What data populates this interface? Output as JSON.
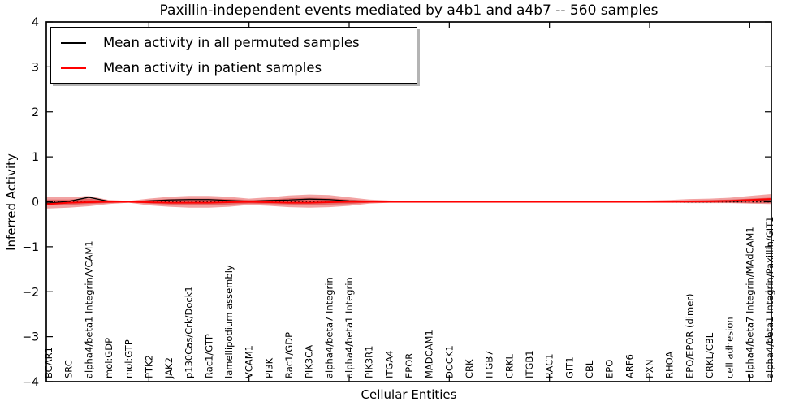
{
  "chart_data": {
    "type": "line",
    "title": "Paxillin-independent events mediated by a4b1 and a4b7 -- 560 samples",
    "xlabel": "Cellular Entities",
    "ylabel": "Inferred Activity",
    "ylim": [
      -4,
      4
    ],
    "grid": false,
    "legend_position": "upper left",
    "y_tick_values": [
      4,
      3,
      2,
      1,
      0,
      -1,
      -2,
      -3,
      -4
    ],
    "y_tick_labels": [
      "4",
      "3",
      "2",
      "1",
      "0",
      "−1",
      "−2",
      "−3",
      "−4"
    ],
    "x_major_tick_indices": [
      5,
      10,
      15,
      20,
      25,
      30,
      35
    ],
    "categories": [
      "BCAR1",
      "SRC",
      "alpha4/beta1 Integrin/VCAM1",
      "mol:GDP",
      "mol:GTP",
      "PTK2",
      "JAK2",
      "p130Cas/Crk/Dock1",
      "Rac1/GTP",
      "lamellipodium assembly",
      "VCAM1",
      "PI3K",
      "Rac1/GDP",
      "PIK3CA",
      "alpha4/beta7 Integrin",
      "alpha4/beta1 Integrin",
      "PIK3R1",
      "ITGA4",
      "EPOR",
      "MADCAM1",
      "DOCK1",
      "CRK",
      "ITGB7",
      "CRKL",
      "ITGB1",
      "RAC1",
      "GIT1",
      "CBL",
      "EPO",
      "ARF6",
      "PXN",
      "RHOA",
      "EPO/EPOR (dimer)",
      "CRKL/CBL",
      "cell adhesion",
      "alpha4/beta7 Integrin/MAdCAM1",
      "alpha4/beta1 Integrin/Paxillin/GIT1"
    ],
    "series": [
      {
        "name": "Mean activity in all permuted samples",
        "color": "#000000",
        "values": [
          -0.03,
          0.01,
          0.1,
          0.01,
          0.0,
          0.02,
          0.04,
          0.05,
          0.05,
          0.03,
          0.01,
          0.03,
          0.04,
          0.06,
          0.05,
          0.02,
          0.01,
          0.0,
          0.0,
          0.0,
          0.0,
          0.0,
          0.0,
          0.0,
          0.0,
          0.0,
          0.0,
          0.0,
          0.0,
          0.0,
          0.0,
          0.01,
          0.01,
          0.01,
          0.01,
          0.02,
          0.02
        ]
      },
      {
        "name": "Mean activity in patient samples",
        "color": "#ff0000",
        "values": [
          -0.05,
          -0.02,
          -0.01,
          0.0,
          0.0,
          -0.01,
          -0.02,
          -0.02,
          -0.02,
          -0.01,
          0.0,
          -0.01,
          -0.02,
          -0.02,
          -0.01,
          0.0,
          0.0,
          0.0,
          0.0,
          0.0,
          0.0,
          0.0,
          0.0,
          0.0,
          0.0,
          0.0,
          0.0,
          0.0,
          0.0,
          0.0,
          0.0,
          0.0,
          0.01,
          0.01,
          0.02,
          0.04,
          0.06
        ]
      }
    ],
    "band": {
      "outer_color": "#f2a3a3",
      "inner_color": "#e05e5e",
      "upper": [
        0.1,
        0.1,
        0.13,
        0.04,
        0.02,
        0.07,
        0.11,
        0.13,
        0.13,
        0.11,
        0.07,
        0.1,
        0.14,
        0.16,
        0.15,
        0.1,
        0.05,
        0.03,
        0.02,
        0.02,
        0.02,
        0.02,
        0.02,
        0.02,
        0.02,
        0.02,
        0.02,
        0.02,
        0.02,
        0.02,
        0.03,
        0.04,
        0.06,
        0.07,
        0.09,
        0.13,
        0.17
      ],
      "lower": [
        -0.15,
        -0.13,
        -0.1,
        -0.05,
        -0.02,
        -0.08,
        -0.11,
        -0.13,
        -0.13,
        -0.11,
        -0.07,
        -0.09,
        -0.12,
        -0.13,
        -0.12,
        -0.09,
        -0.04,
        -0.02,
        -0.02,
        -0.02,
        -0.02,
        -0.02,
        -0.02,
        -0.02,
        -0.02,
        -0.02,
        -0.02,
        -0.02,
        -0.02,
        -0.02,
        -0.02,
        -0.02,
        -0.03,
        -0.03,
        -0.03,
        -0.04,
        -0.05
      ],
      "inner_upper": [
        0.05,
        0.05,
        0.07,
        0.02,
        0.01,
        0.04,
        0.06,
        0.07,
        0.07,
        0.06,
        0.04,
        0.05,
        0.08,
        0.09,
        0.08,
        0.05,
        0.03,
        0.02,
        0.01,
        0.01,
        0.01,
        0.01,
        0.01,
        0.01,
        0.01,
        0.01,
        0.01,
        0.01,
        0.01,
        0.01,
        0.02,
        0.02,
        0.03,
        0.04,
        0.05,
        0.07,
        0.09
      ],
      "inner_lower": [
        -0.08,
        -0.07,
        -0.05,
        -0.03,
        -0.01,
        -0.04,
        -0.06,
        -0.07,
        -0.07,
        -0.06,
        -0.04,
        -0.05,
        -0.06,
        -0.07,
        -0.06,
        -0.05,
        -0.02,
        -0.01,
        -0.01,
        -0.01,
        -0.01,
        -0.01,
        -0.01,
        -0.01,
        -0.01,
        -0.01,
        -0.01,
        -0.01,
        -0.01,
        -0.01,
        -0.01,
        -0.01,
        -0.02,
        -0.02,
        -0.02,
        -0.03,
        -0.03
      ]
    },
    "zero_line": {
      "value": 0,
      "style": "dotted",
      "color": "#000000"
    }
  },
  "legend": {
    "entries": [
      {
        "label": "Mean activity in all permuted samples",
        "color": "#000000"
      },
      {
        "label": "Mean activity in patient samples",
        "color": "#ff0000"
      }
    ]
  }
}
